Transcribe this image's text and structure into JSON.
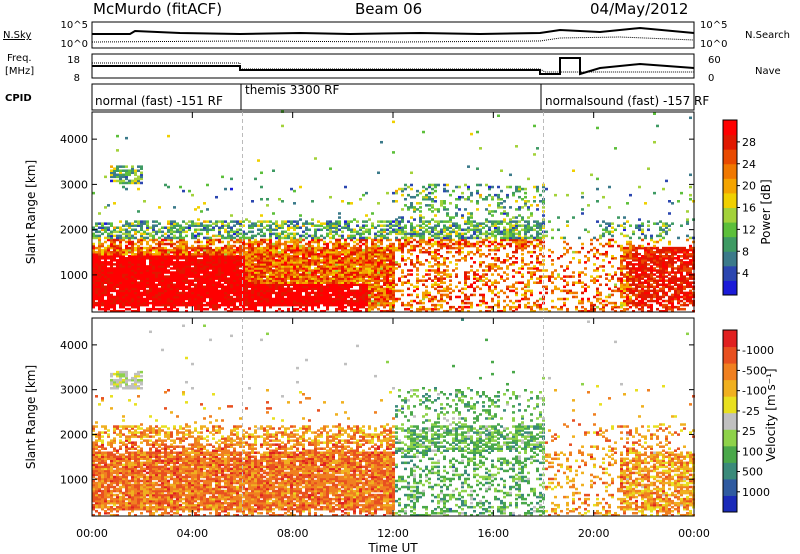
{
  "header": {
    "radar": "McMurdo (fitACF)",
    "beam": "Beam 06",
    "date": "04/May/2012"
  },
  "panels": {
    "noise": {
      "left_label": "N.Sky",
      "right_label": "N.Search",
      "left_ticks": [
        "10^5",
        "10^0"
      ],
      "right_ticks": [
        "10^5",
        "10^0"
      ]
    },
    "freq": {
      "left_label_line1": "Freq.",
      "left_label_line2": "[MHz]",
      "left_ticks": [
        "18",
        "8"
      ],
      "right_label": "Nave",
      "right_ticks": [
        "60",
        "0"
      ]
    },
    "cpid": {
      "label": "CPID",
      "modes": [
        {
          "name": "normal (fast) -151 RF",
          "start_h": 0,
          "end_h": 6
        },
        {
          "name": "themis 3300 RF",
          "start_h": 6,
          "end_h": 18
        },
        {
          "name": "normalsound (fast) -157 RF",
          "start_h": 18,
          "end_h": 24
        }
      ]
    }
  },
  "chart_data": [
    {
      "type": "heatmap",
      "parameter": "Power",
      "ylabel": "Slant Range [km]",
      "ylim": [
        180,
        4600
      ],
      "yticks": [
        1000,
        2000,
        3000,
        4000
      ],
      "xlim": [
        0,
        24
      ],
      "colorbar": {
        "label": "Power [dB]",
        "ticks": [
          "4",
          "8",
          "12",
          "16",
          "20",
          "24",
          "28"
        ],
        "colors": [
          "#1b1bd8",
          "#2b46b0",
          "#3b7a8a",
          "#3e9a63",
          "#5cbf3a",
          "#a3d23a",
          "#f0d000",
          "#f4a400",
          "#f07800",
          "#e84a00",
          "#e01800",
          "#ff0000"
        ]
      }
    },
    {
      "type": "heatmap",
      "parameter": "Velocity",
      "ylabel": "Slant Range [km]",
      "xlabel": "Time UT",
      "ylim": [
        180,
        4600
      ],
      "yticks": [
        1000,
        2000,
        3000,
        4000
      ],
      "xlim": [
        0,
        24
      ],
      "xticks": [
        "00:00",
        "04:00",
        "08:00",
        "12:00",
        "16:00",
        "20:00",
        "00:00"
      ],
      "colorbar": {
        "label": "Velocity [m s⁻¹]",
        "ticks": [
          "1000",
          "500",
          "100",
          "25",
          "-25",
          "-100",
          "-500",
          "-1000"
        ],
        "colors": [
          "#1a2ab8",
          "#2f5aa0",
          "#3a8a7a",
          "#4aa84a",
          "#8ed24a",
          "#c0c0c0",
          "#e8e020",
          "#f0b020",
          "#f08020",
          "#e85020",
          "#e02020"
        ]
      }
    }
  ]
}
